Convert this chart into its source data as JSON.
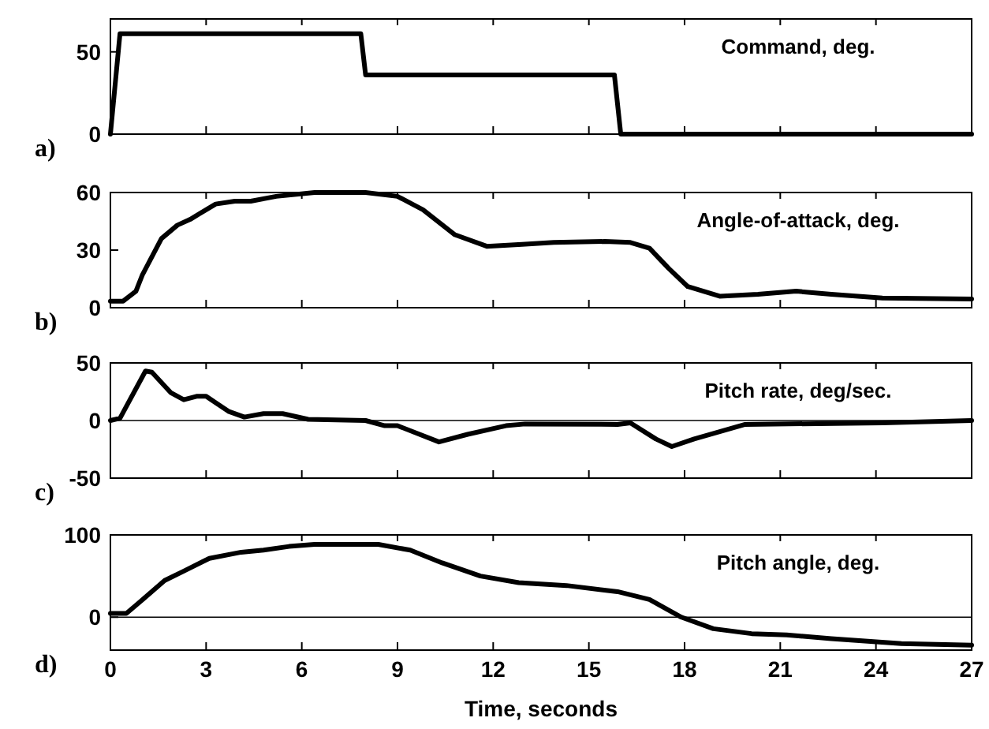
{
  "chart_data": [
    {
      "type": "line",
      "title": "Command, deg.",
      "annotations": [
        "a)"
      ],
      "xlim": [
        0,
        27
      ],
      "xticks": [
        0,
        3,
        6,
        9,
        12,
        15,
        18,
        21,
        24,
        27
      ],
      "ylim": [
        0,
        70
      ],
      "yticks": [
        0,
        50
      ],
      "tick_labels": "y",
      "series": [
        {
          "color": "#000000",
          "x": [
            0,
            0.3,
            7.85,
            8.0,
            15.8,
            16.0,
            27
          ],
          "values": [
            0,
            61,
            61,
            36,
            36,
            0,
            0
          ]
        }
      ]
    },
    {
      "type": "line",
      "title": "Angle-of-attack, deg.",
      "annotations": [
        "b)"
      ],
      "xlim": [
        0,
        27
      ],
      "xticks": [
        0,
        3,
        6,
        9,
        12,
        15,
        18,
        21,
        24,
        27
      ],
      "ylim": [
        0,
        60
      ],
      "yticks": [
        0,
        30,
        60
      ],
      "tick_labels": "y",
      "series": [
        {
          "color": "#000000",
          "x": [
            0,
            0.4,
            0.8,
            1.0,
            1.6,
            2.1,
            2.5,
            3.3,
            3.9,
            4.4,
            5.2,
            6.4,
            8.0,
            9.0,
            9.8,
            10.8,
            11.8,
            12.9,
            13.9,
            15.5,
            16.3,
            16.9,
            17.5,
            18.1,
            19.1,
            20.3,
            21.5,
            22.6,
            24.2,
            27
          ],
          "values": [
            3.4,
            3.4,
            8.6,
            17,
            36,
            43,
            46,
            54,
            55.5,
            55.5,
            58,
            60,
            60,
            58,
            51,
            38,
            32,
            33,
            34,
            34.5,
            34,
            31,
            20.5,
            11,
            6,
            7,
            8.6,
            7,
            5,
            4.5
          ]
        }
      ]
    },
    {
      "type": "line",
      "title": "Pitch rate, deg/sec.",
      "annotations": [
        "c)"
      ],
      "xlim": [
        0,
        27
      ],
      "xticks": [
        0,
        3,
        6,
        9,
        12,
        15,
        18,
        21,
        24,
        27
      ],
      "ylim": [
        -50,
        50
      ],
      "yticks": [
        -50,
        0,
        50
      ],
      "tick_labels": "y",
      "ref_lines": [
        {
          "axis": "y",
          "value": 0,
          "color": "#000000"
        }
      ],
      "series": [
        {
          "color": "#000000",
          "x": [
            0,
            0.3,
            1.1,
            1.3,
            1.9,
            2.3,
            2.7,
            3.0,
            3.7,
            4.2,
            4.8,
            5.4,
            6.2,
            8.0,
            8.6,
            9.0,
            10.3,
            11.2,
            12.4,
            13.0,
            15.9,
            16.3,
            17.1,
            17.6,
            18.3,
            19.9,
            24.2,
            27
          ],
          "values": [
            0,
            2,
            43,
            42,
            24,
            18,
            21,
            21,
            8,
            3,
            6,
            6,
            1,
            0,
            -4.5,
            -4.5,
            -18.6,
            -12,
            -4.5,
            -3,
            -3.4,
            -2,
            -16,
            -22.6,
            -16,
            -3.4,
            -2,
            0
          ]
        }
      ]
    },
    {
      "type": "line",
      "title": "Pitch angle, deg.",
      "xlabel": "Time, seconds",
      "annotations": [
        "d)"
      ],
      "xlim": [
        0,
        27
      ],
      "xticks": [
        0,
        3,
        6,
        9,
        12,
        15,
        18,
        21,
        24,
        27
      ],
      "ylim": [
        -40,
        100
      ],
      "yticks": [
        0,
        100
      ],
      "ref_lines": [
        {
          "axis": "y",
          "value": 0,
          "color": "#000000"
        }
      ],
      "series": [
        {
          "color": "#000000",
          "x": [
            0,
            0.5,
            0.9,
            1.7,
            2.3,
            3.1,
            4.1,
            4.8,
            5.6,
            6.4,
            8.4,
            9.4,
            10.4,
            11.6,
            12.8,
            14.3,
            15.9,
            16.9,
            17.9,
            18.9,
            20.1,
            21.2,
            22.6,
            24.8,
            27
          ],
          "values": [
            4.6,
            4.6,
            17.7,
            44.6,
            56,
            71.5,
            79,
            81.5,
            86,
            88.5,
            88.5,
            81.5,
            66,
            50,
            42,
            38.5,
            31,
            21.5,
            0,
            -14,
            -20,
            -21.5,
            -26,
            -32,
            -34
          ]
        }
      ]
    }
  ]
}
